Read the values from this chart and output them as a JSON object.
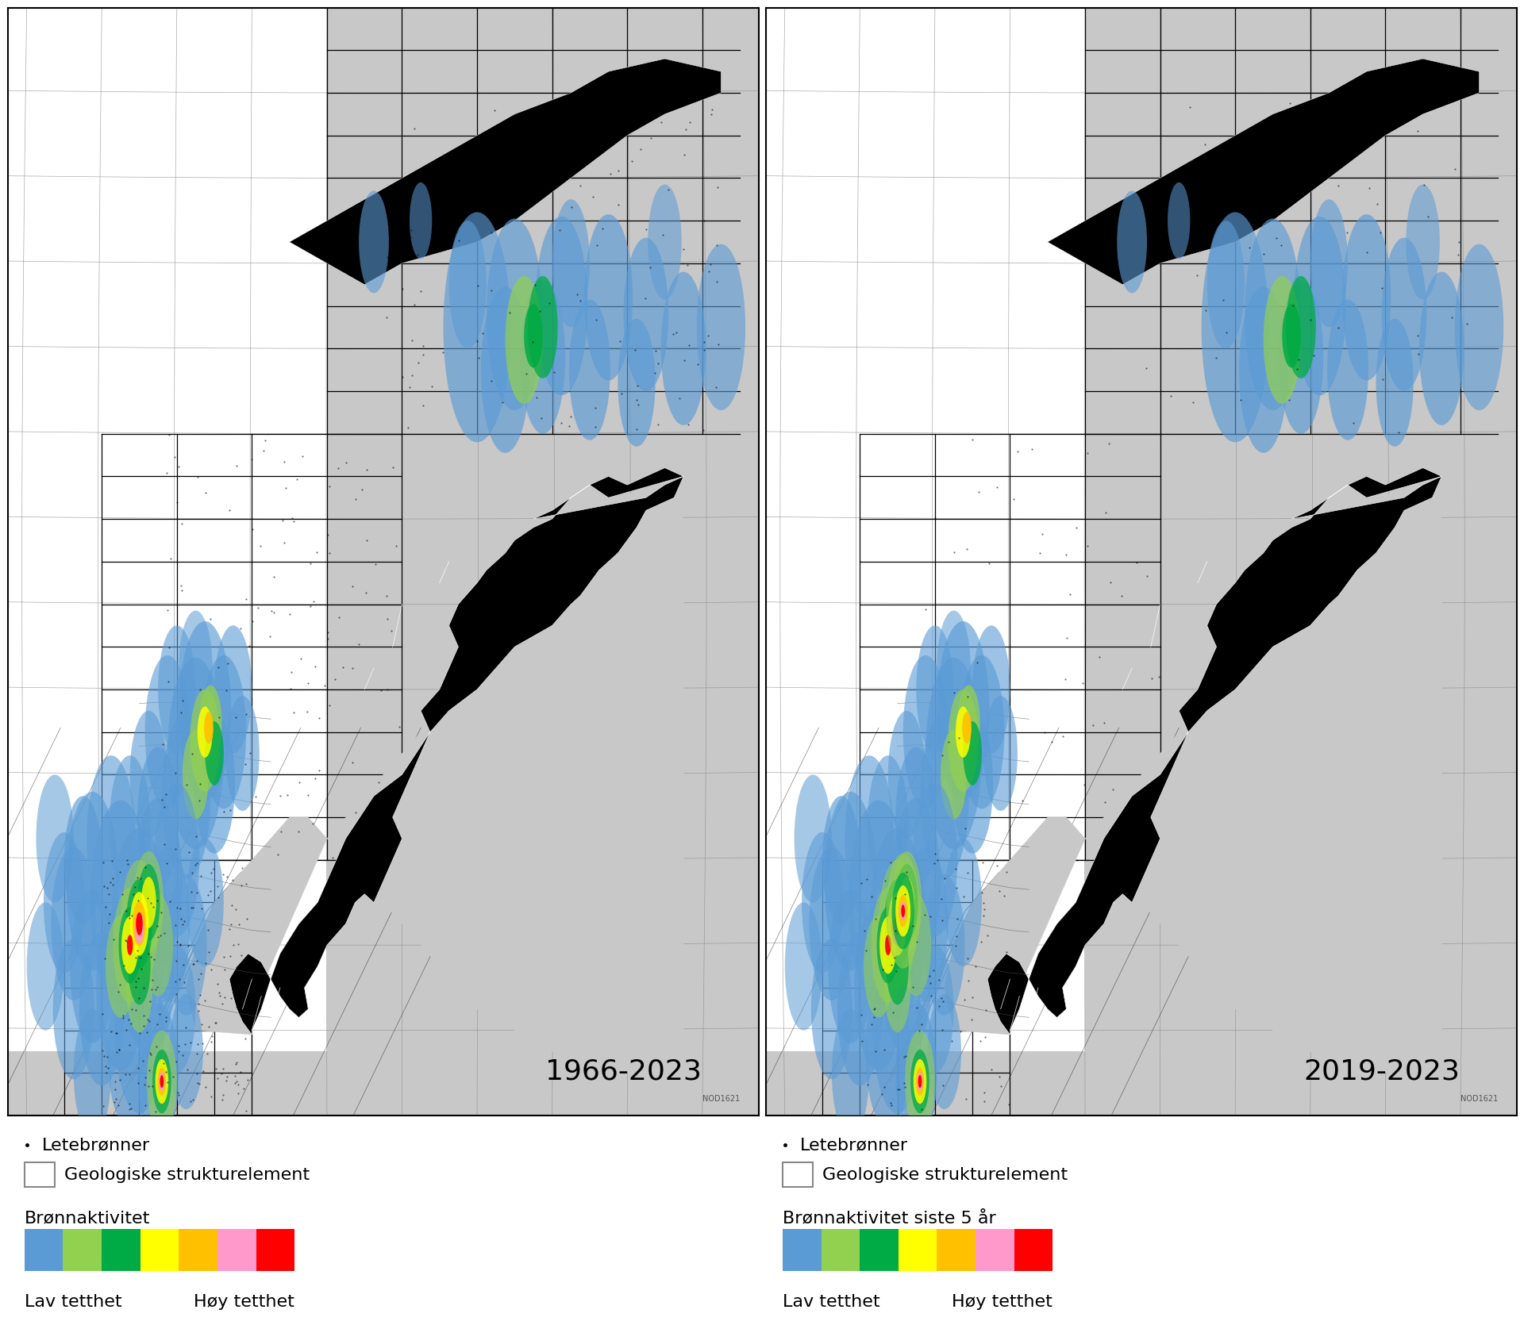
{
  "figure_width": 19.2,
  "figure_height": 16.79,
  "background_color": "#ffffff",
  "map_bg_color": "#ffffff",
  "ocean_color": "#c8c8c8",
  "land_color": "#000000",
  "norway_coast_color": "#ffffff",
  "title_left": "1966-2023",
  "title_right": "2019-2023",
  "title_fontsize": 26,
  "legend_dot_label": "Letebrønner",
  "legend_box_label": "Geologiske strukturelement",
  "legend_colorbar_label_left": "Brønnaktivitet",
  "legend_colorbar_label_right": "Brønnaktivitet siste 5 år",
  "legend_low": "Lav tetthet",
  "legend_high": "Høy tetthet",
  "colorbar_colors": [
    "#5b9bd5",
    "#92d050",
    "#00aa44",
    "#ffff00",
    "#ffc000",
    "#ff99cc",
    "#ff0000"
  ],
  "label_fontsize": 16,
  "source_text": "NOD1621",
  "border_color": "#000000",
  "grid_color": "#888888",
  "block_color": "#000000",
  "map_border_color": "#000000"
}
